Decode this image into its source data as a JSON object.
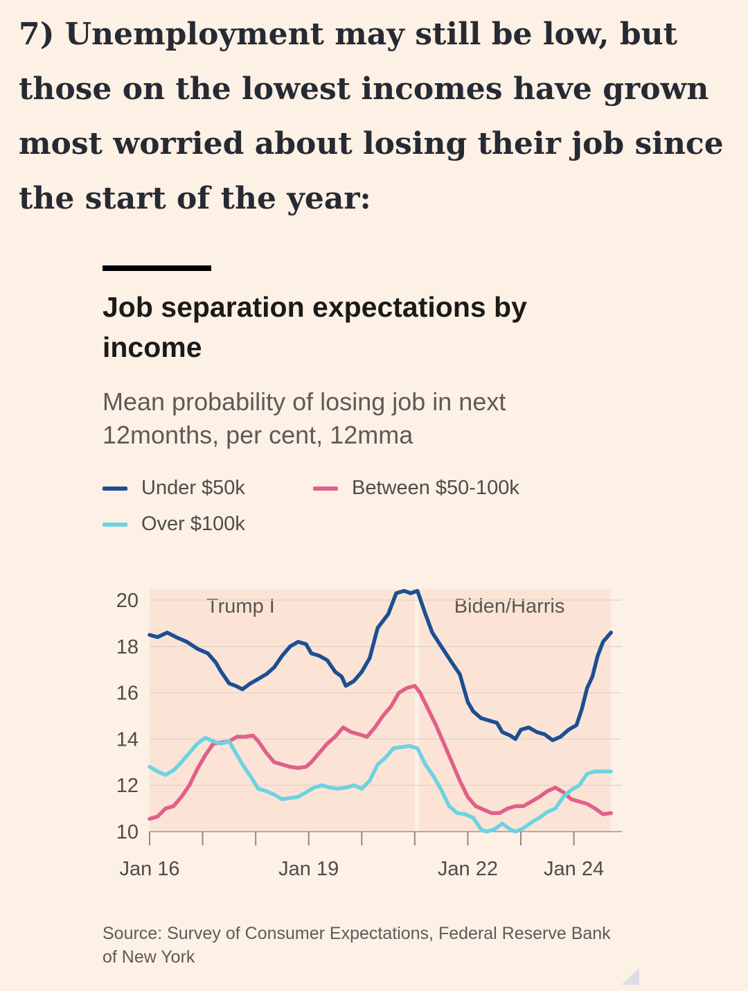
{
  "headline": "7) Unemployment may still be low, but those on the lowest incomes have grown most worried about losing their job since the start of the year:",
  "chart_data": {
    "type": "line",
    "title": "Job separation expectations by income",
    "subtitle": "Mean probability of losing job in next 12months, per cent, 12mma",
    "ylim": [
      10,
      20
    ],
    "yticks": [
      "10",
      "12",
      "14",
      "16",
      "18",
      "20"
    ],
    "xlim": [
      2016.0,
      2024.75
    ],
    "xticks": [
      {
        "label": "Jan 16",
        "x": 2016.0
      },
      {
        "label": "Jan 19",
        "x": 2019.0
      },
      {
        "label": "Jan 22",
        "x": 2022.0
      },
      {
        "label": "Jan 24",
        "x": 2024.0
      }
    ],
    "minor_ticks": [
      2017.0,
      2018.0,
      2020.0,
      2021.0,
      2023.0
    ],
    "grid": true,
    "legend_position": "top",
    "periods": [
      {
        "label": "Trump I",
        "start": 2016.0,
        "end": 2021.0
      },
      {
        "label": "Biden/Harris",
        "start": 2021.08,
        "end": 2024.7
      }
    ],
    "series": [
      {
        "name": "Under $50k",
        "color": "#1c4f93",
        "points": [
          [
            2016.0,
            18.5
          ],
          [
            2016.15,
            18.4
          ],
          [
            2016.33,
            18.6
          ],
          [
            2016.5,
            18.4
          ],
          [
            2016.7,
            18.2
          ],
          [
            2016.9,
            17.9
          ],
          [
            2017.1,
            17.7
          ],
          [
            2017.25,
            17.3
          ],
          [
            2017.35,
            16.9
          ],
          [
            2017.5,
            16.4
          ],
          [
            2017.62,
            16.3
          ],
          [
            2017.75,
            16.15
          ],
          [
            2017.9,
            16.4
          ],
          [
            2018.05,
            16.6
          ],
          [
            2018.2,
            16.8
          ],
          [
            2018.35,
            17.1
          ],
          [
            2018.5,
            17.6
          ],
          [
            2018.65,
            18.0
          ],
          [
            2018.8,
            18.2
          ],
          [
            2018.95,
            18.1
          ],
          [
            2019.05,
            17.7
          ],
          [
            2019.2,
            17.6
          ],
          [
            2019.35,
            17.4
          ],
          [
            2019.5,
            16.9
          ],
          [
            2019.62,
            16.7
          ],
          [
            2019.7,
            16.3
          ],
          [
            2019.85,
            16.5
          ],
          [
            2020.0,
            16.9
          ],
          [
            2020.15,
            17.5
          ],
          [
            2020.3,
            18.8
          ],
          [
            2020.5,
            19.4
          ],
          [
            2020.65,
            20.3
          ],
          [
            2020.8,
            20.4
          ],
          [
            2020.92,
            20.3
          ],
          [
            2021.05,
            20.4
          ],
          [
            2021.2,
            19.4
          ],
          [
            2021.33,
            18.6
          ],
          [
            2021.5,
            18.0
          ],
          [
            2021.7,
            17.3
          ],
          [
            2021.85,
            16.8
          ],
          [
            2022.0,
            15.6
          ],
          [
            2022.1,
            15.2
          ],
          [
            2022.25,
            14.9
          ],
          [
            2022.4,
            14.8
          ],
          [
            2022.55,
            14.7
          ],
          [
            2022.65,
            14.3
          ],
          [
            2022.8,
            14.15
          ],
          [
            2022.9,
            14.0
          ],
          [
            2023.0,
            14.4
          ],
          [
            2023.15,
            14.5
          ],
          [
            2023.3,
            14.3
          ],
          [
            2023.45,
            14.2
          ],
          [
            2023.6,
            13.95
          ],
          [
            2023.75,
            14.1
          ],
          [
            2023.9,
            14.4
          ],
          [
            2024.05,
            14.6
          ],
          [
            2024.15,
            15.3
          ],
          [
            2024.25,
            16.2
          ],
          [
            2024.35,
            16.7
          ],
          [
            2024.45,
            17.6
          ],
          [
            2024.55,
            18.2
          ],
          [
            2024.7,
            18.6
          ]
        ]
      },
      {
        "name": "Between $50-100k",
        "color": "#e06088",
        "points": [
          [
            2016.0,
            10.55
          ],
          [
            2016.15,
            10.65
          ],
          [
            2016.3,
            11.0
          ],
          [
            2016.45,
            11.1
          ],
          [
            2016.6,
            11.5
          ],
          [
            2016.75,
            12.0
          ],
          [
            2016.9,
            12.7
          ],
          [
            2017.05,
            13.3
          ],
          [
            2017.2,
            13.8
          ],
          [
            2017.35,
            13.85
          ],
          [
            2017.5,
            13.9
          ],
          [
            2017.65,
            14.1
          ],
          [
            2017.8,
            14.1
          ],
          [
            2017.95,
            14.15
          ],
          [
            2018.05,
            13.9
          ],
          [
            2018.2,
            13.4
          ],
          [
            2018.35,
            13.0
          ],
          [
            2018.5,
            12.9
          ],
          [
            2018.65,
            12.8
          ],
          [
            2018.8,
            12.75
          ],
          [
            2018.95,
            12.8
          ],
          [
            2019.05,
            13.0
          ],
          [
            2019.2,
            13.4
          ],
          [
            2019.35,
            13.8
          ],
          [
            2019.5,
            14.1
          ],
          [
            2019.65,
            14.5
          ],
          [
            2019.8,
            14.3
          ],
          [
            2019.95,
            14.2
          ],
          [
            2020.1,
            14.1
          ],
          [
            2020.25,
            14.5
          ],
          [
            2020.4,
            15.0
          ],
          [
            2020.55,
            15.4
          ],
          [
            2020.7,
            16.0
          ],
          [
            2020.85,
            16.2
          ],
          [
            2021.0,
            16.3
          ],
          [
            2021.1,
            16.0
          ],
          [
            2021.25,
            15.3
          ],
          [
            2021.4,
            14.6
          ],
          [
            2021.55,
            13.8
          ],
          [
            2021.7,
            13.0
          ],
          [
            2021.85,
            12.2
          ],
          [
            2022.0,
            11.5
          ],
          [
            2022.15,
            11.1
          ],
          [
            2022.3,
            10.95
          ],
          [
            2022.45,
            10.8
          ],
          [
            2022.6,
            10.8
          ],
          [
            2022.75,
            11.0
          ],
          [
            2022.9,
            11.1
          ],
          [
            2023.05,
            11.1
          ],
          [
            2023.2,
            11.3
          ],
          [
            2023.35,
            11.5
          ],
          [
            2023.5,
            11.75
          ],
          [
            2023.65,
            11.9
          ],
          [
            2023.8,
            11.7
          ],
          [
            2023.95,
            11.4
          ],
          [
            2024.1,
            11.3
          ],
          [
            2024.25,
            11.2
          ],
          [
            2024.4,
            11.0
          ],
          [
            2024.55,
            10.75
          ],
          [
            2024.7,
            10.8
          ]
        ]
      },
      {
        "name": "Over $100k",
        "color": "#6fd2e2",
        "points": [
          [
            2016.0,
            12.8
          ],
          [
            2016.15,
            12.6
          ],
          [
            2016.3,
            12.45
          ],
          [
            2016.45,
            12.65
          ],
          [
            2016.6,
            13.0
          ],
          [
            2016.75,
            13.4
          ],
          [
            2016.9,
            13.8
          ],
          [
            2017.05,
            14.05
          ],
          [
            2017.2,
            13.9
          ],
          [
            2017.35,
            13.8
          ],
          [
            2017.5,
            13.9
          ],
          [
            2017.6,
            13.5
          ],
          [
            2017.75,
            12.9
          ],
          [
            2017.9,
            12.4
          ],
          [
            2018.05,
            11.85
          ],
          [
            2018.2,
            11.75
          ],
          [
            2018.35,
            11.6
          ],
          [
            2018.5,
            11.4
          ],
          [
            2018.65,
            11.45
          ],
          [
            2018.8,
            11.5
          ],
          [
            2018.95,
            11.7
          ],
          [
            2019.1,
            11.9
          ],
          [
            2019.25,
            12.0
          ],
          [
            2019.4,
            11.9
          ],
          [
            2019.55,
            11.85
          ],
          [
            2019.7,
            11.9
          ],
          [
            2019.85,
            12.0
          ],
          [
            2020.0,
            11.85
          ],
          [
            2020.15,
            12.2
          ],
          [
            2020.3,
            12.9
          ],
          [
            2020.45,
            13.2
          ],
          [
            2020.6,
            13.6
          ],
          [
            2020.75,
            13.65
          ],
          [
            2020.9,
            13.7
          ],
          [
            2021.05,
            13.6
          ],
          [
            2021.2,
            12.9
          ],
          [
            2021.35,
            12.4
          ],
          [
            2021.5,
            11.8
          ],
          [
            2021.65,
            11.1
          ],
          [
            2021.8,
            10.8
          ],
          [
            2021.95,
            10.75
          ],
          [
            2022.1,
            10.6
          ],
          [
            2022.25,
            10.1
          ],
          [
            2022.35,
            10.0
          ],
          [
            2022.5,
            10.1
          ],
          [
            2022.65,
            10.35
          ],
          [
            2022.8,
            10.1
          ],
          [
            2022.9,
            10.0
          ],
          [
            2023.05,
            10.15
          ],
          [
            2023.2,
            10.4
          ],
          [
            2023.35,
            10.6
          ],
          [
            2023.5,
            10.85
          ],
          [
            2023.65,
            11.0
          ],
          [
            2023.8,
            11.5
          ],
          [
            2023.95,
            11.8
          ],
          [
            2024.1,
            12.0
          ],
          [
            2024.25,
            12.5
          ],
          [
            2024.4,
            12.6
          ],
          [
            2024.55,
            12.6
          ],
          [
            2024.7,
            12.6
          ]
        ]
      }
    ]
  },
  "source": "Source: Survey of Consumer Expectations, Federal Reserve Bank of New York"
}
